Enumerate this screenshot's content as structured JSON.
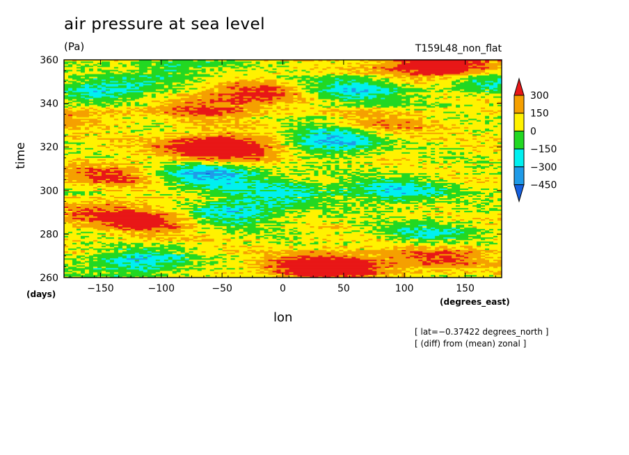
{
  "chart_data": {
    "type": "heatmap",
    "title": "air pressure at sea level",
    "units": "(Pa)",
    "run_label": "T159L48_non_flat",
    "xlabel": "lon",
    "ylabel": "time",
    "x_units": "(degrees_east)",
    "y_units": "(days)",
    "xlim": [
      -180,
      180
    ],
    "ylim": [
      260,
      360
    ],
    "x_ticks": [
      -150,
      -100,
      -50,
      0,
      50,
      100,
      150
    ],
    "y_ticks": [
      260,
      280,
      300,
      320,
      340,
      360
    ],
    "colorbar": {
      "levels": [
        "300",
        "150",
        "0",
        "−150",
        "−300",
        "−450"
      ],
      "colors": [
        "#e81717",
        "#f5a000",
        "#fff200",
        "#22d822",
        "#00f0f0",
        "#1f9be8",
        "#1560e0"
      ]
    },
    "annotations": [
      "[ lat=−0.37422 degrees_north ]",
      "[ (diff) from (mean) zonal ]"
    ],
    "field_blobs": [
      {
        "lon": -60,
        "time": 320,
        "amp": 380
      },
      {
        "lon": -30,
        "time": 318,
        "amp": 250
      },
      {
        "lon": -140,
        "time": 307,
        "amp": 260
      },
      {
        "lon": -110,
        "time": 286,
        "amp": 300
      },
      {
        "lon": -150,
        "time": 290,
        "amp": 200
      },
      {
        "lon": 140,
        "time": 357,
        "amp": 330
      },
      {
        "lon": 110,
        "time": 358,
        "amp": 230
      },
      {
        "lon": -20,
        "time": 345,
        "amp": 260
      },
      {
        "lon": -60,
        "time": 338,
        "amp": 240
      },
      {
        "lon": 80,
        "time": 330,
        "amp": 200
      },
      {
        "lon": 20,
        "time": 265,
        "amp": 300
      },
      {
        "lon": 55,
        "time": 266,
        "amp": 270
      },
      {
        "lon": 130,
        "time": 270,
        "amp": 250
      },
      {
        "lon": -170,
        "time": 335,
        "amp": 180
      },
      {
        "lon": -60,
        "time": 308,
        "amp": -420
      },
      {
        "lon": 40,
        "time": 323,
        "amp": -430
      },
      {
        "lon": 90,
        "time": 300,
        "amp": -280
      },
      {
        "lon": -40,
        "time": 290,
        "amp": -320
      },
      {
        "lon": -150,
        "time": 345,
        "amp": -300
      },
      {
        "lon": -120,
        "time": 267,
        "amp": -330
      },
      {
        "lon": 60,
        "time": 346,
        "amp": -300
      },
      {
        "lon": 170,
        "time": 350,
        "amp": -220
      },
      {
        "lon": 120,
        "time": 280,
        "amp": -220
      },
      {
        "lon": -90,
        "time": 356,
        "amp": -200
      },
      {
        "lon": 0,
        "time": 300,
        "amp": -200
      }
    ]
  }
}
